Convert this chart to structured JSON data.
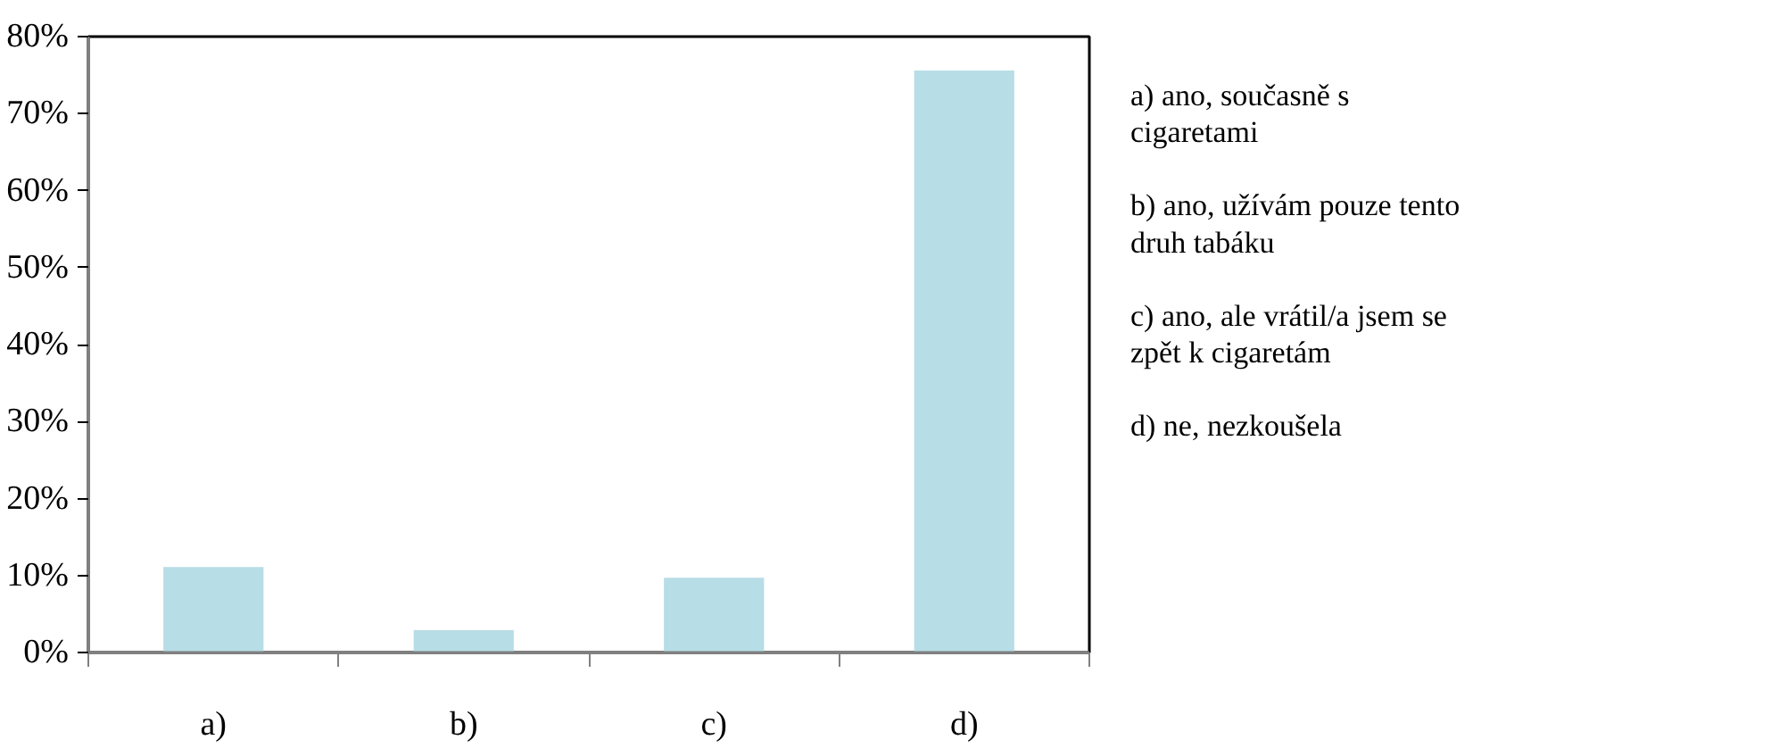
{
  "chart_data": {
    "type": "bar",
    "categories": [
      "a)",
      "b)",
      "c)",
      "d)"
    ],
    "values": [
      11.1,
      2.9,
      9.7,
      75.6
    ],
    "color": "#b7dde6",
    "ylim": [
      0,
      80
    ],
    "yticks": [
      {
        "value": 0,
        "label": "0%"
      },
      {
        "value": 10,
        "label": "10%"
      },
      {
        "value": 20,
        "label": "20%"
      },
      {
        "value": 30,
        "label": "30%"
      },
      {
        "value": 40,
        "label": "40%"
      },
      {
        "value": 50,
        "label": "50%"
      },
      {
        "value": 60,
        "label": "60%"
      },
      {
        "value": 70,
        "label": "70%"
      },
      {
        "value": 80,
        "label": "80%"
      }
    ],
    "annotations": [
      "a) ano, současně s cigaretami",
      "b) ano, užívám pouze tento druh tabáku",
      "c) ano, ale vrátil/a jsem se zpět k cigaretám",
      "d) ne, nezkoušela"
    ]
  }
}
